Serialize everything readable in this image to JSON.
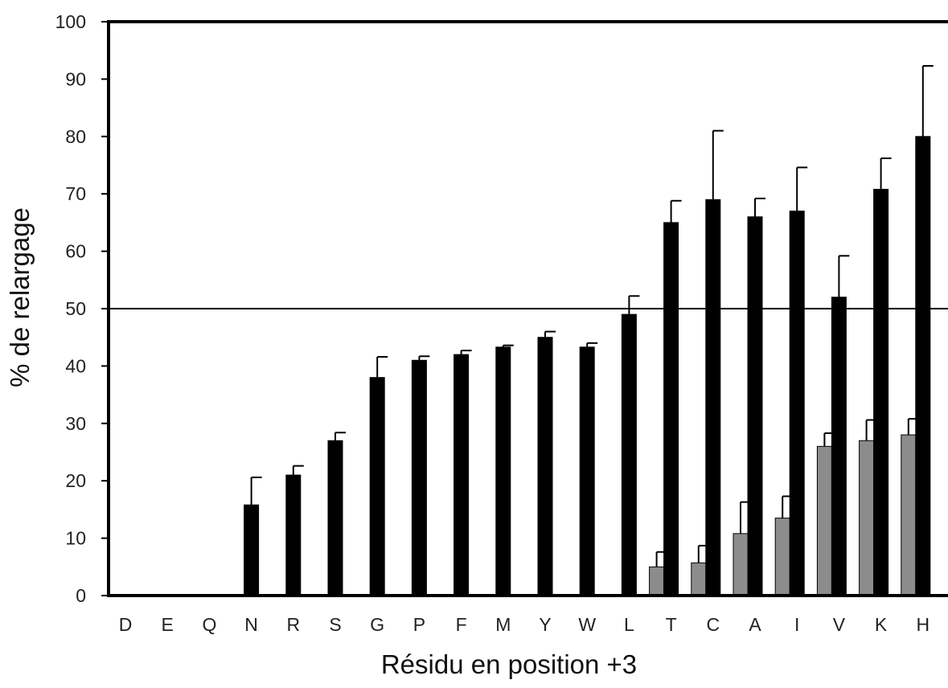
{
  "chart_data": {
    "type": "bar",
    "title": "",
    "xlabel": "Résidu en position +3",
    "ylabel": "% de relargage",
    "ylim": [
      0,
      100
    ],
    "yticks": [
      0,
      10,
      20,
      30,
      40,
      50,
      60,
      70,
      80,
      90,
      100
    ],
    "grid": false,
    "reference_line": 50,
    "categories": [
      "D",
      "E",
      "Q",
      "N",
      "R",
      "S",
      "G",
      "P",
      "F",
      "M",
      "Y",
      "W",
      "L",
      "T",
      "C",
      "A",
      "I",
      "V",
      "K",
      "H"
    ],
    "series": [
      {
        "color": "#8c8c8c",
        "values": [
          0,
          0,
          0,
          0,
          0,
          0,
          0,
          0,
          0,
          0,
          0,
          0,
          0,
          5,
          5.7,
          10.8,
          13.5,
          26,
          27,
          28
        ],
        "errors": [
          0,
          0,
          0,
          0,
          0,
          0,
          0,
          0,
          0,
          0,
          0,
          0,
          0,
          2.6,
          3,
          5.5,
          3.8,
          2.3,
          3.6,
          2.8
        ]
      },
      {
        "color": "#000000",
        "values": [
          0,
          0,
          0,
          15.8,
          21,
          27,
          38,
          41,
          42,
          43.3,
          45,
          43.3,
          49,
          65,
          69,
          66,
          67,
          52,
          70.8,
          80
        ],
        "errors": [
          0,
          0,
          0,
          4.8,
          1.6,
          1.4,
          3.6,
          0.7,
          0.7,
          0.3,
          1,
          0.7,
          3.2,
          3.8,
          12,
          3.2,
          7.6,
          7.2,
          5.4,
          12.3
        ]
      }
    ]
  }
}
